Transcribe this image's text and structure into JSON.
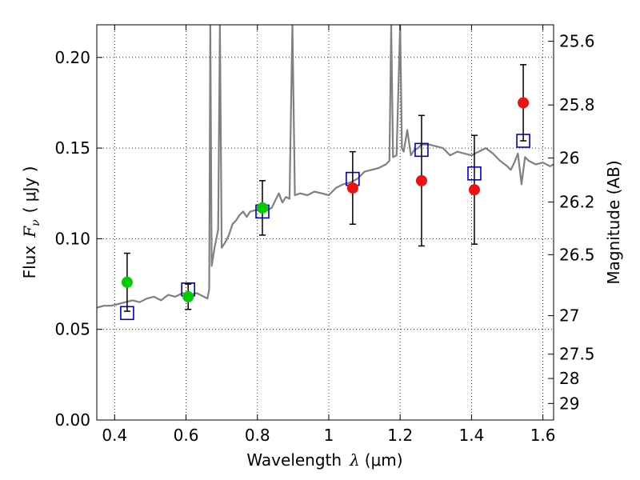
{
  "chart_data": {
    "type": "scatter",
    "xlabel": "Wavelength",
    "xlabel_symbol": "λ",
    "xlabel_unit": "(μm)",
    "ylabel": "Flux",
    "ylabel_symbol": "F",
    "ylabel_subscript": "ν",
    "ylabel_unit": "( μJy )",
    "y2label": "Magnitude (AB)",
    "xlim": [
      0.35,
      1.63
    ],
    "ylim": [
      0.0,
      0.218
    ],
    "grid": true,
    "grid_style": "dotted",
    "x_ticks": [
      0.4,
      0.6,
      0.8,
      1.0,
      1.2,
      1.4,
      1.6
    ],
    "x_tick_labels": [
      "0.4",
      "0.6",
      "0.8",
      "1",
      "1.2",
      "1.4",
      "1.6"
    ],
    "y_ticks": [
      0.0,
      0.05,
      0.1,
      0.15,
      0.2
    ],
    "y_tick_labels": [
      "0.00",
      "0.05",
      "0.10",
      "0.15",
      "0.20"
    ],
    "y2_ticks": [
      25.6,
      25.8,
      26,
      26.2,
      26.5,
      27,
      27.5,
      28,
      29
    ],
    "y2_tick_labels": [
      "25.6",
      "25.8",
      "26",
      "26.2",
      "26.5",
      "27",
      "27.5",
      "28",
      "29"
    ],
    "colors": {
      "spectrum": "#808080",
      "green_points": "#00cc00",
      "red_points": "#ee1111",
      "model_squares": "#0000bb",
      "errorbars": "#000000"
    },
    "series": [
      {
        "name": "observed-green",
        "kind": "points-with-errors",
        "points": [
          {
            "x": 0.435,
            "y": 0.076,
            "err": 0.016
          },
          {
            "x": 0.606,
            "y": 0.068,
            "err": 0.007
          },
          {
            "x": 0.814,
            "y": 0.117,
            "err": 0.015
          }
        ]
      },
      {
        "name": "observed-red",
        "kind": "points-with-errors",
        "points": [
          {
            "x": 1.067,
            "y": 0.128,
            "err": 0.02
          },
          {
            "x": 1.26,
            "y": 0.132,
            "err": 0.036
          },
          {
            "x": 1.408,
            "y": 0.127,
            "err": 0.03
          },
          {
            "x": 1.545,
            "y": 0.175,
            "err": 0.021
          }
        ]
      },
      {
        "name": "model-squares",
        "kind": "open-squares",
        "points": [
          {
            "x": 0.435,
            "y": 0.059
          },
          {
            "x": 0.606,
            "y": 0.072
          },
          {
            "x": 0.814,
            "y": 0.115
          },
          {
            "x": 1.067,
            "y": 0.133
          },
          {
            "x": 1.26,
            "y": 0.149
          },
          {
            "x": 1.408,
            "y": 0.136
          },
          {
            "x": 1.545,
            "y": 0.154
          }
        ]
      },
      {
        "name": "model-spectrum",
        "kind": "line",
        "points": [
          [
            0.35,
            0.062
          ],
          [
            0.37,
            0.063
          ],
          [
            0.39,
            0.063
          ],
          [
            0.41,
            0.064
          ],
          [
            0.43,
            0.065
          ],
          [
            0.45,
            0.066
          ],
          [
            0.47,
            0.065
          ],
          [
            0.49,
            0.067
          ],
          [
            0.51,
            0.068
          ],
          [
            0.53,
            0.066
          ],
          [
            0.55,
            0.069
          ],
          [
            0.57,
            0.068
          ],
          [
            0.59,
            0.07
          ],
          [
            0.61,
            0.069
          ],
          [
            0.63,
            0.07
          ],
          [
            0.65,
            0.068
          ],
          [
            0.66,
            0.067
          ],
          [
            0.665,
            0.072
          ],
          [
            0.668,
            0.218
          ],
          [
            0.672,
            0.085
          ],
          [
            0.68,
            0.095
          ],
          [
            0.69,
            0.105
          ],
          [
            0.695,
            0.218
          ],
          [
            0.7,
            0.095
          ],
          [
            0.71,
            0.098
          ],
          [
            0.72,
            0.102
          ],
          [
            0.73,
            0.108
          ],
          [
            0.74,
            0.11
          ],
          [
            0.75,
            0.113
          ],
          [
            0.76,
            0.115
          ],
          [
            0.77,
            0.112
          ],
          [
            0.78,
            0.115
          ],
          [
            0.8,
            0.116
          ],
          [
            0.82,
            0.115
          ],
          [
            0.84,
            0.117
          ],
          [
            0.86,
            0.125
          ],
          [
            0.87,
            0.12
          ],
          [
            0.88,
            0.123
          ],
          [
            0.89,
            0.122
          ],
          [
            0.898,
            0.218
          ],
          [
            0.905,
            0.124
          ],
          [
            0.92,
            0.125
          ],
          [
            0.94,
            0.124
          ],
          [
            0.96,
            0.126
          ],
          [
            0.98,
            0.125
          ],
          [
            1.0,
            0.124
          ],
          [
            1.02,
            0.128
          ],
          [
            1.04,
            0.13
          ],
          [
            1.06,
            0.131
          ],
          [
            1.08,
            0.133
          ],
          [
            1.1,
            0.137
          ],
          [
            1.12,
            0.138
          ],
          [
            1.14,
            0.139
          ],
          [
            1.16,
            0.141
          ],
          [
            1.17,
            0.143
          ],
          [
            1.175,
            0.218
          ],
          [
            1.18,
            0.145
          ],
          [
            1.19,
            0.146
          ],
          [
            1.2,
            0.218
          ],
          [
            1.205,
            0.15
          ],
          [
            1.21,
            0.148
          ],
          [
            1.22,
            0.16
          ],
          [
            1.23,
            0.146
          ],
          [
            1.24,
            0.149
          ],
          [
            1.25,
            0.15
          ],
          [
            1.26,
            0.152
          ],
          [
            1.28,
            0.152
          ],
          [
            1.3,
            0.151
          ],
          [
            1.32,
            0.15
          ],
          [
            1.34,
            0.146
          ],
          [
            1.36,
            0.148
          ],
          [
            1.38,
            0.147
          ],
          [
            1.4,
            0.146
          ],
          [
            1.42,
            0.148
          ],
          [
            1.44,
            0.15
          ],
          [
            1.46,
            0.147
          ],
          [
            1.48,
            0.143
          ],
          [
            1.5,
            0.14
          ],
          [
            1.51,
            0.138
          ],
          [
            1.52,
            0.142
          ],
          [
            1.53,
            0.147
          ],
          [
            1.54,
            0.13
          ],
          [
            1.55,
            0.145
          ],
          [
            1.56,
            0.143
          ],
          [
            1.58,
            0.141
          ],
          [
            1.6,
            0.142
          ],
          [
            1.62,
            0.14
          ],
          [
            1.63,
            0.141
          ]
        ]
      }
    ]
  }
}
